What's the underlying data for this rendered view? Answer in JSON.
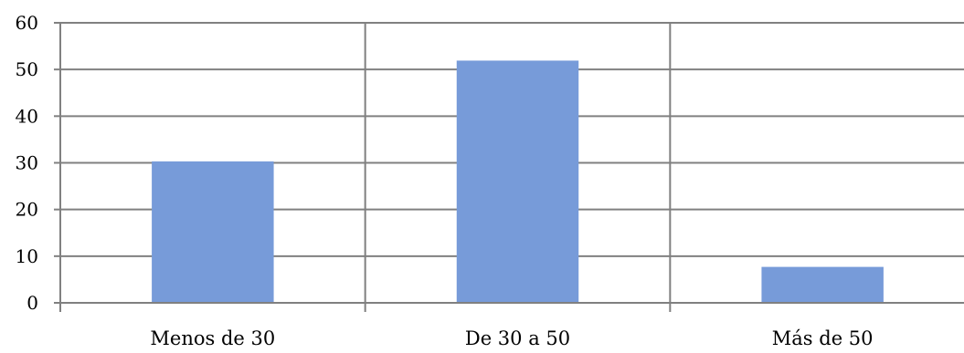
{
  "chart_data": {
    "type": "bar",
    "categories": [
      "Menos de 30",
      "De 30 a 50",
      "Más de 50"
    ],
    "values": [
      30.3,
      51.9,
      7.7
    ],
    "title": "",
    "xlabel": "",
    "ylabel": "",
    "ylim": [
      0,
      60
    ],
    "yticks": [
      0,
      10,
      20,
      30,
      40,
      50,
      60
    ],
    "grid": true,
    "legend": "none",
    "bar_color": "#779BD9",
    "grid_color": "#808080"
  }
}
